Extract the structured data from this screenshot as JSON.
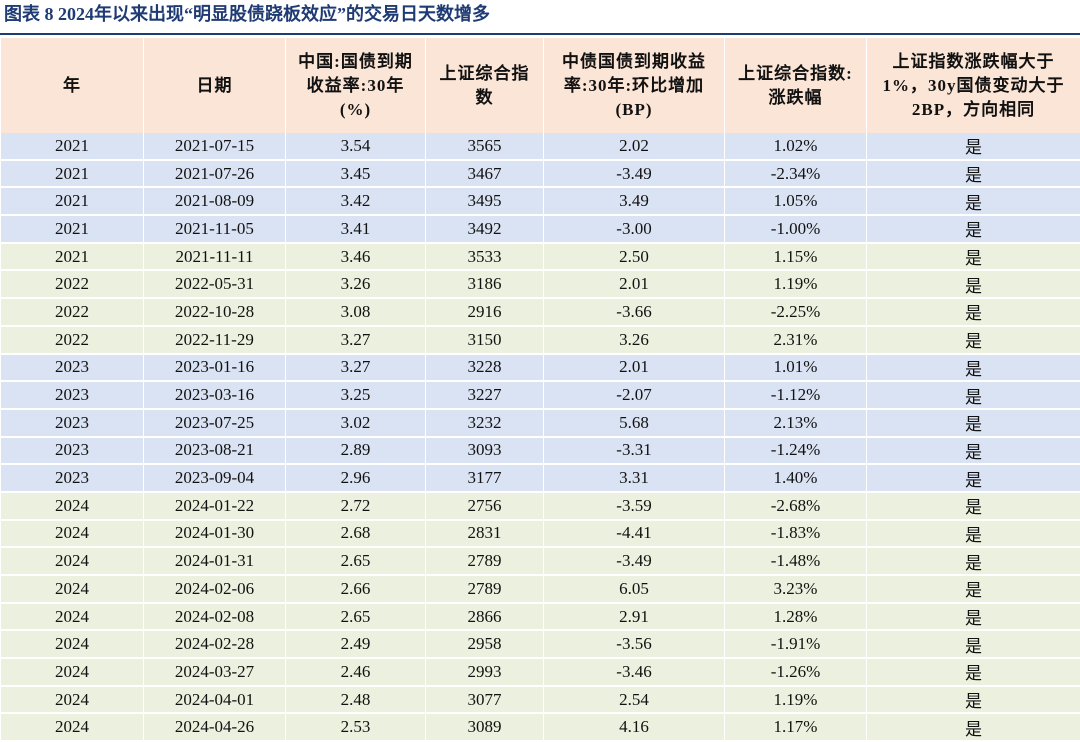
{
  "header": {
    "title": "图表 8  2024年以来出现“明显股债跷板效应”的交易日天数增多"
  },
  "table": {
    "columns": [
      "年",
      "日期",
      "中国:国债到期收益率:30年(%)",
      "上证综合指数",
      "中债国债到期收益率:30年:环比增加(BP)",
      "上证综合指数:涨跌幅",
      "上证指数涨跌幅大于1%，30y国债变动大于2BP，方向相同"
    ],
    "rows": [
      [
        "2021",
        "2021-07-15",
        "3.54",
        "3565",
        "2.02",
        "1.02%",
        "是"
      ],
      [
        "2021",
        "2021-07-26",
        "3.45",
        "3467",
        "-3.49",
        "-2.34%",
        "是"
      ],
      [
        "2021",
        "2021-08-09",
        "3.42",
        "3495",
        "3.49",
        "1.05%",
        "是"
      ],
      [
        "2021",
        "2021-11-05",
        "3.41",
        "3492",
        "-3.00",
        "-1.00%",
        "是"
      ],
      [
        "2021",
        "2021-11-11",
        "3.46",
        "3533",
        "2.50",
        "1.15%",
        "是"
      ],
      [
        "2022",
        "2022-05-31",
        "3.26",
        "3186",
        "2.01",
        "1.19%",
        "是"
      ],
      [
        "2022",
        "2022-10-28",
        "3.08",
        "2916",
        "-3.66",
        "-2.25%",
        "是"
      ],
      [
        "2022",
        "2022-11-29",
        "3.27",
        "3150",
        "3.26",
        "2.31%",
        "是"
      ],
      [
        "2023",
        "2023-01-16",
        "3.27",
        "3228",
        "2.01",
        "1.01%",
        "是"
      ],
      [
        "2023",
        "2023-03-16",
        "3.25",
        "3227",
        "-2.07",
        "-1.12%",
        "是"
      ],
      [
        "2023",
        "2023-07-25",
        "3.02",
        "3232",
        "5.68",
        "2.13%",
        "是"
      ],
      [
        "2023",
        "2023-08-21",
        "2.89",
        "3093",
        "-3.31",
        "-1.24%",
        "是"
      ],
      [
        "2023",
        "2023-09-04",
        "2.96",
        "3177",
        "3.31",
        "1.40%",
        "是"
      ],
      [
        "2024",
        "2024-01-22",
        "2.72",
        "2756",
        "-3.59",
        "-2.68%",
        "是"
      ],
      [
        "2024",
        "2024-01-30",
        "2.68",
        "2831",
        "-4.41",
        "-1.83%",
        "是"
      ],
      [
        "2024",
        "2024-01-31",
        "2.65",
        "2789",
        "-3.49",
        "-1.48%",
        "是"
      ],
      [
        "2024",
        "2024-02-06",
        "2.66",
        "2789",
        "6.05",
        "3.23%",
        "是"
      ],
      [
        "2024",
        "2024-02-08",
        "2.65",
        "2866",
        "2.91",
        "1.28%",
        "是"
      ],
      [
        "2024",
        "2024-02-28",
        "2.49",
        "2958",
        "-3.56",
        "-1.91%",
        "是"
      ],
      [
        "2024",
        "2024-03-27",
        "2.46",
        "2993",
        "-3.46",
        "-1.26%",
        "是"
      ],
      [
        "2024",
        "2024-04-01",
        "2.48",
        "3077",
        "2.54",
        "1.19%",
        "是"
      ],
      [
        "2024",
        "2024-04-26",
        "2.53",
        "3089",
        "4.16",
        "1.17%",
        "是"
      ]
    ]
  }
}
